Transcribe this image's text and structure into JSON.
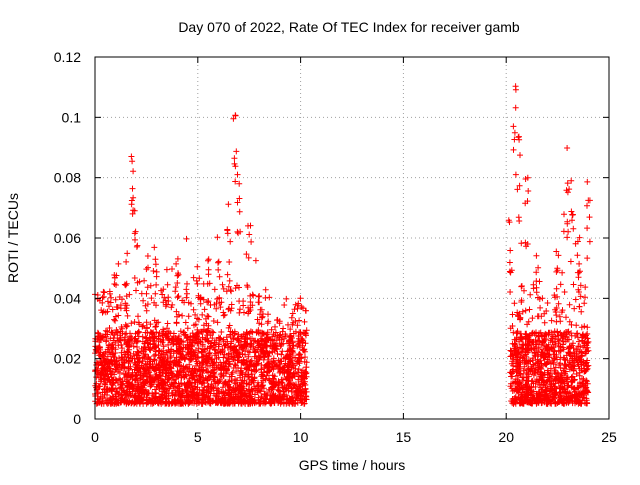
{
  "chart_data": {
    "type": "scatter",
    "title": "Day 070 of 2022, Rate Of TEC Index for receiver gamb",
    "xlabel": "GPS time / hours",
    "ylabel": "ROTI / TECUs",
    "xlim": [
      0,
      25
    ],
    "ylim": [
      0,
      0.12
    ],
    "grid": true,
    "marker": "+",
    "series_color": "#ff0000",
    "x_ticks": [
      {
        "value": 0,
        "label": "0"
      },
      {
        "value": 5,
        "label": "5"
      },
      {
        "value": 10,
        "label": "10"
      },
      {
        "value": 15,
        "label": "15"
      },
      {
        "value": 20,
        "label": "20"
      },
      {
        "value": 25,
        "label": "25"
      }
    ],
    "y_ticks": [
      {
        "value": 0,
        "label": "0"
      },
      {
        "value": 0.02,
        "label": "0.02"
      },
      {
        "value": 0.04,
        "label": "0.04"
      },
      {
        "value": 0.06,
        "label": "0.06"
      },
      {
        "value": 0.08,
        "label": "0.08"
      },
      {
        "value": 0.1,
        "label": "0.1"
      },
      {
        "value": 0.12,
        "label": "0.12"
      }
    ],
    "data_segments": [
      {
        "x_start": 0.0,
        "x_end": 10.3
      },
      {
        "x_start": 20.2,
        "x_end": 24.0
      }
    ],
    "envelope": {
      "x": [
        0,
        0.5,
        1.0,
        1.5,
        1.8,
        2.0,
        2.5,
        3.0,
        3.5,
        4.0,
        4.5,
        5.0,
        5.5,
        6.0,
        6.5,
        6.8,
        7.0,
        7.5,
        8.0,
        8.5,
        9.0,
        9.5,
        10.0,
        10.3,
        20.2,
        20.4,
        20.6,
        21.0,
        21.5,
        22.0,
        22.5,
        23.0,
        23.2,
        23.5,
        24.0
      ],
      "y": [
        0.042,
        0.045,
        0.058,
        0.065,
        0.09,
        0.072,
        0.055,
        0.06,
        0.05,
        0.055,
        0.06,
        0.05,
        0.055,
        0.063,
        0.075,
        0.105,
        0.085,
        0.065,
        0.05,
        0.04,
        0.036,
        0.045,
        0.04,
        0.038,
        0.07,
        0.111,
        0.094,
        0.08,
        0.055,
        0.04,
        0.06,
        0.09,
        0.08,
        0.062,
        0.079
      ]
    }
  }
}
